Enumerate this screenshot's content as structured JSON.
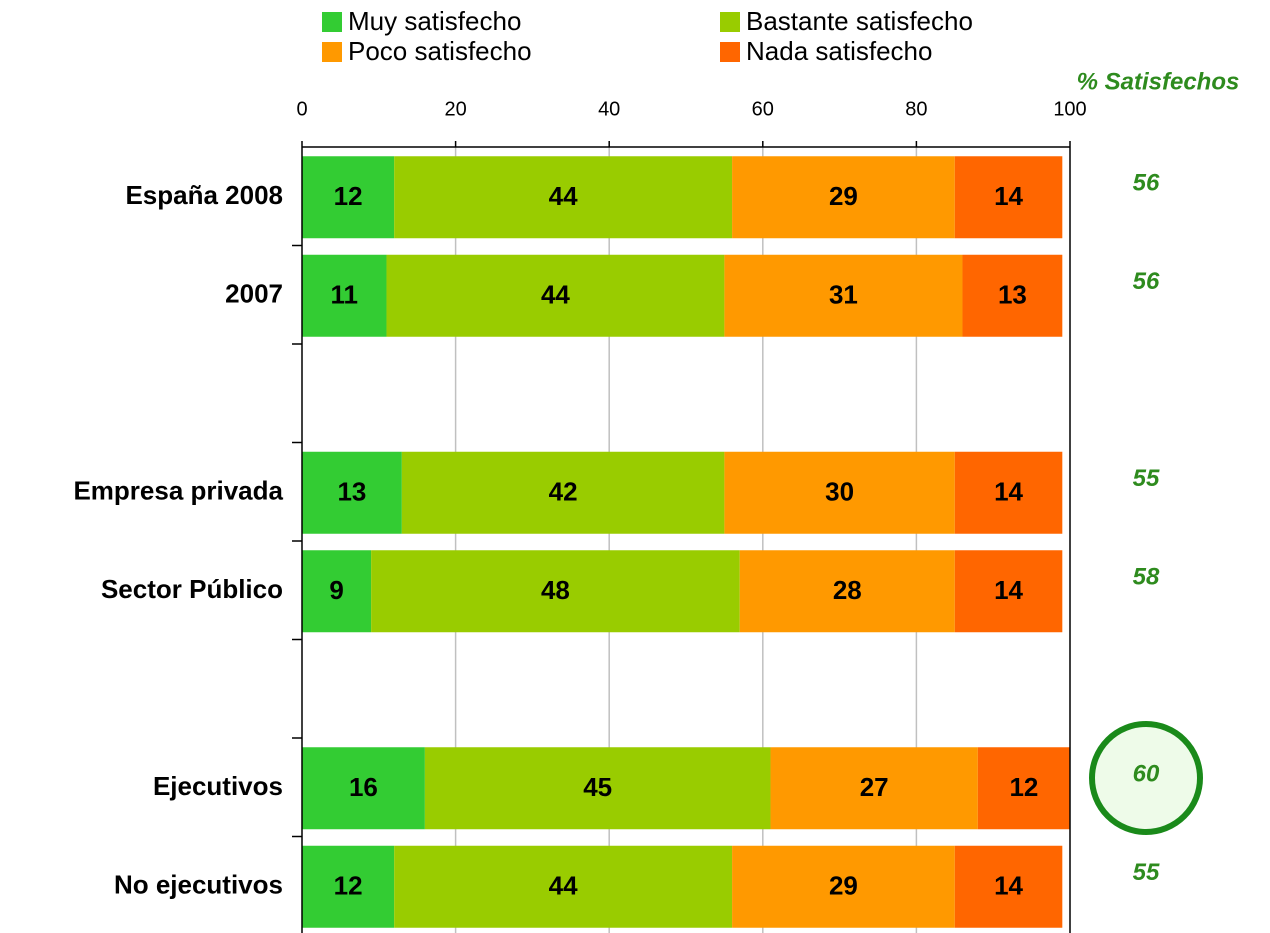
{
  "chart_data": {
    "type": "stacked_barh",
    "categories": [
      "España 2008",
      "2007",
      null,
      "Empresa privada",
      "Sector Público",
      null,
      "Ejecutivos",
      "No ejecutivos"
    ],
    "series": [
      {
        "name": "Muy satisfecho",
        "color": "#33cc33",
        "values": [
          12,
          11,
          null,
          13,
          9,
          null,
          16,
          12
        ]
      },
      {
        "name": "Bastante satisfecho",
        "color": "#99cc00",
        "values": [
          44,
          44,
          null,
          42,
          48,
          null,
          45,
          44
        ]
      },
      {
        "name": "Poco satisfecho",
        "color": "#ff9900",
        "values": [
          29,
          31,
          null,
          30,
          28,
          null,
          27,
          29
        ]
      },
      {
        "name": "Nada satisfecho",
        "color": "#ff6600",
        "values": [
          14,
          13,
          null,
          14,
          14,
          null,
          12,
          14
        ]
      }
    ],
    "xlim": [
      0,
      100
    ],
    "xticks": [
      0,
      20,
      40,
      60,
      80,
      100
    ],
    "grid": true,
    "satisfied": {
      "title": "% Satisfechos",
      "color": "#2e8b1e",
      "values": [
        56,
        56,
        null,
        55,
        58,
        null,
        60,
        55
      ]
    }
  }
}
